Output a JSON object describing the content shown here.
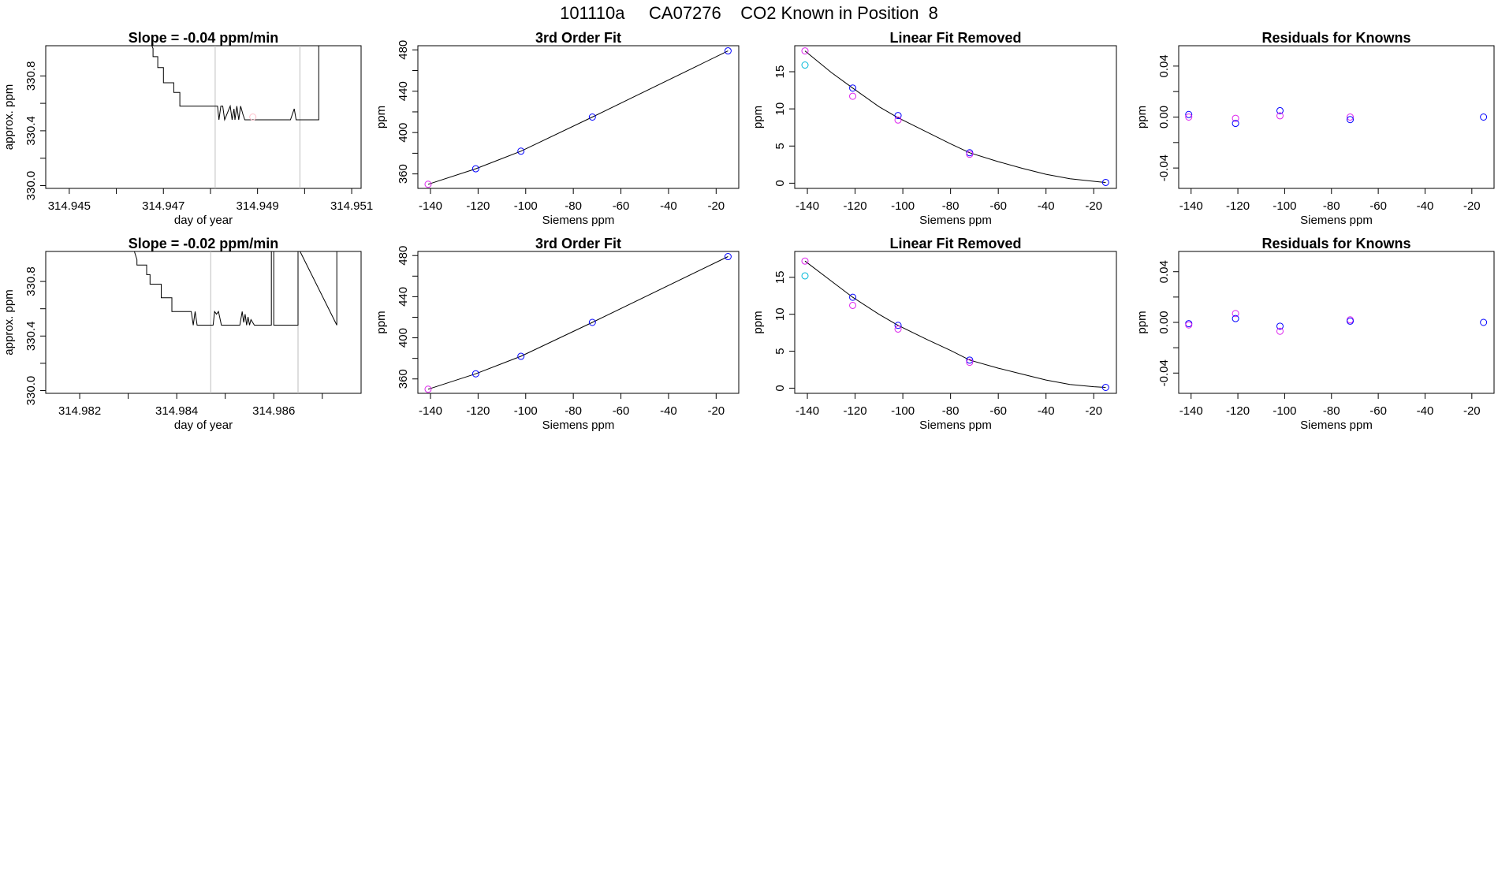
{
  "page": {
    "title": "101110a     CA07276    CO2 Known in Position  8"
  },
  "colors": {
    "trace": "#000000",
    "vline": "#bebebe",
    "point_blue": "#0000ff",
    "point_magenta": "#dd22ee",
    "point_cyan": "#00b8d8",
    "point_pink": "#ffc0cb"
  },
  "chart_data": [
    {
      "id": "r1_timeseries",
      "type": "line",
      "title": "Slope =  -0.04  ppm/min",
      "xlabel": "day of year",
      "ylabel": "approx. ppm",
      "xlim": [
        314.9445,
        314.9512
      ],
      "ylim": [
        329.98,
        331.02
      ],
      "xticks": [
        314.945,
        314.946,
        314.947,
        314.948,
        314.949,
        314.95,
        314.951
      ],
      "xticklabels": [
        "314.945",
        "",
        "314.947",
        "",
        "314.949",
        "",
        "314.951"
      ],
      "yticks": [
        330.0,
        330.2,
        330.4,
        330.6,
        330.8
      ],
      "yticklabels": [
        "330.0",
        "",
        "330.4",
        "",
        "330.8"
      ],
      "vlines": [
        314.9481,
        314.9499
      ],
      "series": [
        {
          "x": [
            314.94672,
            314.94678,
            314.94678,
            314.94688,
            314.94688,
            314.947,
            314.947,
            314.94722,
            314.94722,
            314.94735,
            314.94735,
            314.94815,
            314.94818,
            314.94822,
            314.94826,
            314.9483,
            314.94842,
            314.94846,
            314.9485,
            314.94852,
            314.94856,
            314.9486,
            314.94864,
            314.94869,
            314.94873,
            314.94876,
            314.9491,
            314.9497,
            314.94978,
            314.94982,
            314.94986,
            314.9503,
            314.9503
          ],
          "y": [
            331.05,
            331.0,
            330.94,
            330.94,
            330.86,
            330.86,
            330.75,
            330.75,
            330.68,
            330.68,
            330.58,
            330.58,
            330.48,
            330.58,
            330.58,
            330.48,
            330.58,
            330.48,
            330.56,
            330.48,
            330.58,
            330.48,
            330.58,
            330.52,
            330.48,
            330.48,
            330.48,
            330.48,
            330.56,
            330.48,
            330.48,
            330.48,
            331.05
          ]
        }
      ],
      "points": [
        {
          "x": 314.9489,
          "y": 330.5,
          "color": "pink"
        }
      ]
    },
    {
      "id": "r1_fit",
      "type": "scatter",
      "title": "3rd Order Fit",
      "xlabel": "Siemens ppm",
      "ylabel": "ppm",
      "xlim": [
        -145.3,
        -10.5
      ],
      "ylim": [
        346,
        484
      ],
      "xticks": [
        -140,
        -120,
        -100,
        -80,
        -60,
        -40,
        -20
      ],
      "yticks": [
        360,
        380,
        400,
        420,
        440,
        460,
        480
      ],
      "yticklabels": [
        "360",
        "",
        "400",
        "",
        "440",
        "",
        "480"
      ],
      "curve": {
        "x": [
          -141,
          -121,
          -102,
          -72,
          -15
        ],
        "y": [
          350,
          365,
          382,
          415,
          479
        ]
      },
      "points": [
        {
          "x": -141,
          "y": 350,
          "color": "magenta"
        },
        {
          "x": -121,
          "y": 365,
          "color": "blue"
        },
        {
          "x": -102,
          "y": 382,
          "color": "blue"
        },
        {
          "x": -72,
          "y": 415,
          "color": "blue"
        },
        {
          "x": -15,
          "y": 479,
          "color": "blue"
        }
      ]
    },
    {
      "id": "r1_linear",
      "type": "scatter",
      "title": "Linear Fit Removed",
      "xlabel": "Siemens ppm",
      "ylabel": "ppm",
      "xlim": [
        -145.3,
        -10.5
      ],
      "ylim": [
        -0.7,
        18.5
      ],
      "xticks": [
        -140,
        -120,
        -100,
        -80,
        -60,
        -40,
        -20
      ],
      "yticks": [
        0,
        5,
        10,
        15
      ],
      "curve": {
        "x": [
          -141,
          -130,
          -121,
          -110,
          -102,
          -90,
          -80,
          -72,
          -60,
          -50,
          -40,
          -30,
          -20,
          -15
        ],
        "y": [
          17.8,
          14.9,
          12.8,
          10.3,
          8.8,
          6.9,
          5.3,
          4.1,
          2.9,
          2.0,
          1.2,
          0.6,
          0.25,
          0.1
        ]
      },
      "points": [
        {
          "x": -141,
          "y": 17.8,
          "color": "magenta"
        },
        {
          "x": -141,
          "y": 15.9,
          "color": "cyan"
        },
        {
          "x": -121,
          "y": 12.8,
          "color": "blue"
        },
        {
          "x": -121,
          "y": 11.7,
          "color": "magenta"
        },
        {
          "x": -102,
          "y": 9.1,
          "color": "blue"
        },
        {
          "x": -102,
          "y": 8.5,
          "color": "magenta"
        },
        {
          "x": -72,
          "y": 4.1,
          "color": "blue"
        },
        {
          "x": -72,
          "y": 3.9,
          "color": "magenta"
        },
        {
          "x": -15,
          "y": 0.1,
          "color": "blue"
        }
      ]
    },
    {
      "id": "r1_resid",
      "type": "scatter",
      "title": "Residuals for Knowns",
      "xlabel": "Siemens ppm",
      "ylabel": "ppm",
      "xlim": [
        -145.3,
        -10.5
      ],
      "ylim": [
        -0.056,
        0.056
      ],
      "xticks": [
        -140,
        -120,
        -100,
        -80,
        -60,
        -40,
        -20
      ],
      "yticks": [
        -0.04,
        -0.02,
        0.0,
        0.02,
        0.04
      ],
      "yticklabels": [
        "-0.04",
        "",
        "0.00",
        "",
        "0.04"
      ],
      "points": [
        {
          "x": -141,
          "y": 0.002,
          "color": "blue"
        },
        {
          "x": -141,
          "y": 0.0,
          "color": "magenta"
        },
        {
          "x": -121,
          "y": -0.001,
          "color": "magenta"
        },
        {
          "x": -121,
          "y": -0.005,
          "color": "blue"
        },
        {
          "x": -102,
          "y": 0.005,
          "color": "blue"
        },
        {
          "x": -102,
          "y": 0.001,
          "color": "magenta"
        },
        {
          "x": -72,
          "y": 0.0,
          "color": "magenta"
        },
        {
          "x": -72,
          "y": -0.002,
          "color": "blue"
        },
        {
          "x": -15,
          "y": 0.0,
          "color": "blue"
        }
      ]
    },
    {
      "id": "r2_timeseries",
      "type": "line",
      "title": "Slope =  -0.02  ppm/min",
      "xlabel": "day of year",
      "ylabel": "approx. ppm",
      "xlim": [
        314.9813,
        314.9878
      ],
      "ylim": [
        329.98,
        331.02
      ],
      "xticks": [
        314.982,
        314.983,
        314.984,
        314.985,
        314.986,
        314.987
      ],
      "xticklabels": [
        "314.982",
        "",
        "314.984",
        "",
        "314.986",
        ""
      ],
      "yticks": [
        330.0,
        330.2,
        330.4,
        330.6,
        330.8
      ],
      "yticklabels": [
        "330.0",
        "",
        "330.4",
        "",
        "330.8"
      ],
      "vlines": [
        314.9847,
        314.9865
      ],
      "series": [
        {
          "x": [
            314.9831,
            314.98318,
            314.98318,
            314.98338,
            314.98338,
            314.98345,
            314.98345,
            314.98368,
            314.98368,
            314.9839,
            314.9839,
            314.9843,
            314.98434,
            314.98438,
            314.98442,
            314.98475,
            314.98478,
            314.98482,
            314.98486,
            314.98492,
            314.985,
            314.9853,
            314.98535,
            314.98538,
            314.98541,
            314.98544,
            314.98547,
            314.9855,
            314.98553,
            314.9856,
            314.98595,
            314.98595,
            314.986,
            314.986,
            314.9865,
            314.9865,
            314.9873,
            314.9873
          ],
          "y": [
            331.05,
            330.96,
            330.92,
            330.92,
            330.85,
            330.85,
            330.78,
            330.78,
            330.68,
            330.68,
            330.58,
            330.58,
            330.48,
            330.58,
            330.48,
            330.48,
            330.58,
            330.56,
            330.58,
            330.48,
            330.48,
            330.48,
            330.58,
            330.5,
            330.56,
            330.48,
            330.54,
            330.48,
            330.52,
            330.48,
            330.48,
            331.05,
            331.05,
            330.48,
            330.48,
            331.05,
            330.48,
            331.05
          ]
        }
      ],
      "points": []
    },
    {
      "id": "r2_fit",
      "type": "scatter",
      "title": "3rd Order Fit",
      "xlabel": "Siemens ppm",
      "ylabel": "ppm",
      "xlim": [
        -145.3,
        -10.5
      ],
      "ylim": [
        346,
        484
      ],
      "xticks": [
        -140,
        -120,
        -100,
        -80,
        -60,
        -40,
        -20
      ],
      "yticks": [
        360,
        380,
        400,
        420,
        440,
        460,
        480
      ],
      "yticklabels": [
        "360",
        "",
        "400",
        "",
        "440",
        "",
        "480"
      ],
      "curve": {
        "x": [
          -141,
          -121,
          -102,
          -72,
          -15
        ],
        "y": [
          350,
          365,
          382,
          415,
          479
        ]
      },
      "points": [
        {
          "x": -141,
          "y": 350,
          "color": "magenta"
        },
        {
          "x": -121,
          "y": 365,
          "color": "blue"
        },
        {
          "x": -102,
          "y": 382,
          "color": "blue"
        },
        {
          "x": -72,
          "y": 415,
          "color": "blue"
        },
        {
          "x": -15,
          "y": 479,
          "color": "blue"
        }
      ]
    },
    {
      "id": "r2_linear",
      "type": "scatter",
      "title": "Linear Fit Removed",
      "xlabel": "Siemens ppm",
      "ylabel": "ppm",
      "xlim": [
        -145.3,
        -10.5
      ],
      "ylim": [
        -0.7,
        18.5
      ],
      "xticks": [
        -140,
        -120,
        -100,
        -80,
        -60,
        -40,
        -20
      ],
      "yticks": [
        0,
        5,
        10,
        15
      ],
      "curve": {
        "x": [
          -141,
          -130,
          -121,
          -110,
          -102,
          -90,
          -80,
          -72,
          -60,
          -50,
          -40,
          -30,
          -20,
          -15
        ],
        "y": [
          17.2,
          14.5,
          12.3,
          10.0,
          8.5,
          6.6,
          5.1,
          3.8,
          2.7,
          1.9,
          1.1,
          0.5,
          0.2,
          0.1
        ]
      },
      "points": [
        {
          "x": -141,
          "y": 17.2,
          "color": "magenta"
        },
        {
          "x": -141,
          "y": 15.2,
          "color": "cyan"
        },
        {
          "x": -121,
          "y": 12.3,
          "color": "blue"
        },
        {
          "x": -121,
          "y": 11.2,
          "color": "magenta"
        },
        {
          "x": -102,
          "y": 8.5,
          "color": "blue"
        },
        {
          "x": -102,
          "y": 8.0,
          "color": "magenta"
        },
        {
          "x": -72,
          "y": 3.8,
          "color": "blue"
        },
        {
          "x": -72,
          "y": 3.5,
          "color": "magenta"
        },
        {
          "x": -15,
          "y": 0.1,
          "color": "blue"
        }
      ]
    },
    {
      "id": "r2_resid",
      "type": "scatter",
      "title": "Residuals for Knowns",
      "xlabel": "Siemens ppm",
      "ylabel": "ppm",
      "xlim": [
        -145.3,
        -10.5
      ],
      "ylim": [
        -0.056,
        0.056
      ],
      "xticks": [
        -140,
        -120,
        -100,
        -80,
        -60,
        -40,
        -20
      ],
      "yticks": [
        -0.04,
        -0.02,
        0.0,
        0.02,
        0.04
      ],
      "yticklabels": [
        "-0.04",
        "",
        "0.00",
        "",
        "0.04"
      ],
      "points": [
        {
          "x": -141,
          "y": -0.001,
          "color": "blue"
        },
        {
          "x": -141,
          "y": -0.002,
          "color": "magenta"
        },
        {
          "x": -121,
          "y": 0.007,
          "color": "magenta"
        },
        {
          "x": -121,
          "y": 0.003,
          "color": "blue"
        },
        {
          "x": -102,
          "y": -0.003,
          "color": "blue"
        },
        {
          "x": -102,
          "y": -0.007,
          "color": "magenta"
        },
        {
          "x": -72,
          "y": 0.002,
          "color": "magenta"
        },
        {
          "x": -72,
          "y": 0.001,
          "color": "blue"
        },
        {
          "x": -15,
          "y": 0.0,
          "color": "blue"
        }
      ]
    }
  ]
}
